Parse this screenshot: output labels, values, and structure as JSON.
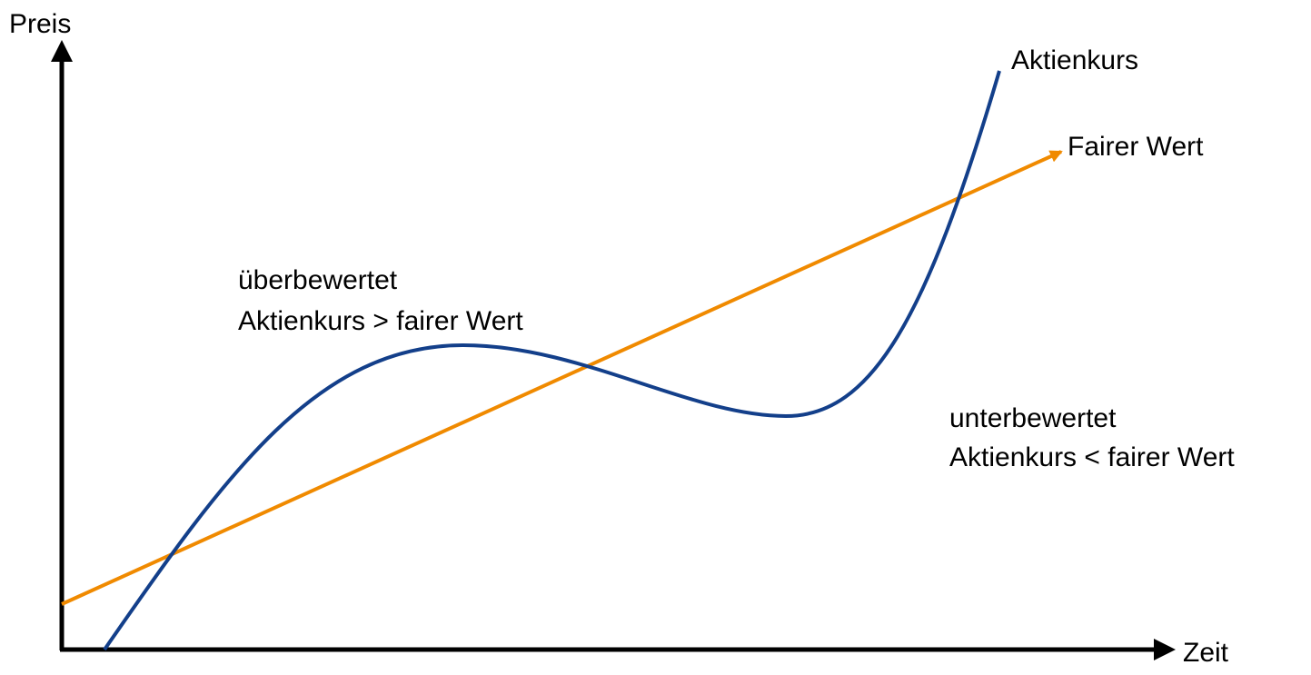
{
  "axes": {
    "y_label": "Preis",
    "x_label": "Zeit"
  },
  "curves": [
    {
      "label": "Aktienkurs"
    },
    {
      "label": "Fairer Wert"
    }
  ],
  "annotations": [
    {
      "lines": [
        "überbewertet",
        "Aktienkurs > fairer Wert"
      ]
    },
    {
      "lines": [
        "unterbewertet",
        "Aktienkurs < fairer Wert"
      ]
    }
  ]
}
